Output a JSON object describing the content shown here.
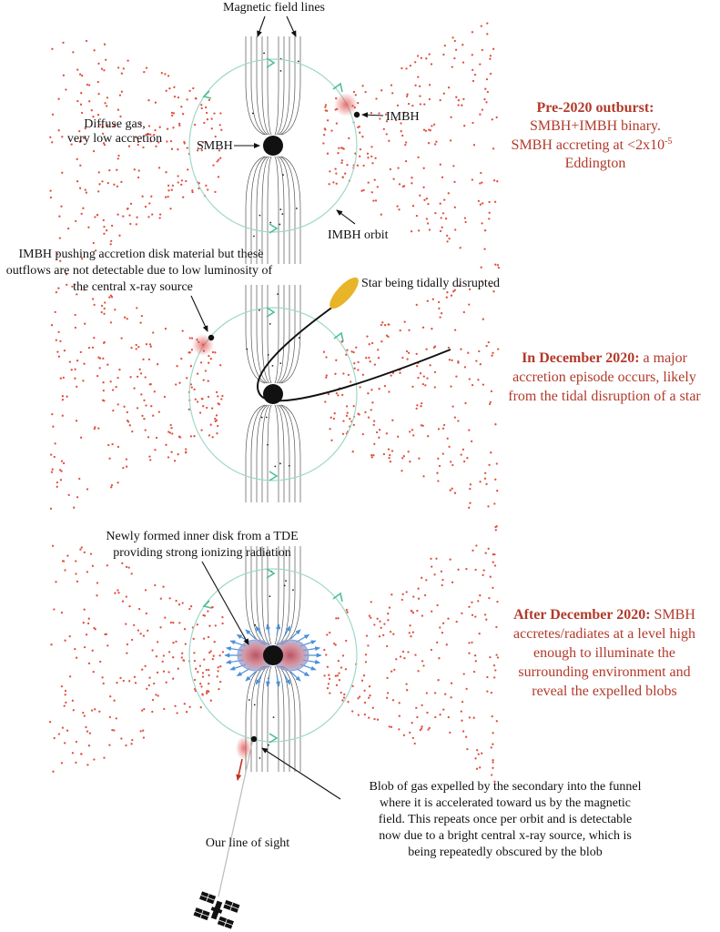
{
  "colors": {
    "gas_dots": "#e05040",
    "field_lines": "#555555",
    "orbit": "#9fd8c8",
    "orbit_arrows": "#4cbf95",
    "caption_text": "#b23a2a",
    "star": "#e8b428",
    "ionizing_arrows": "#4a8fd8",
    "inner_disk": "#c06878",
    "blob": "#e06060",
    "sightline_arrow": "#c03020"
  },
  "panel1": {
    "label_field_lines": "Magnetic field lines",
    "label_diffuse_gas_1": "Diffuse gas,",
    "label_diffuse_gas_2": "very low accretion",
    "label_smbh": "SMBH",
    "label_imbh": "IMBH",
    "label_imbh_orbit": "IMBH orbit",
    "caption_title": "Pre-2020 outburst:",
    "caption_line2": "SMBH+IMBH binary.",
    "caption_line3": "SMBH accreting at <2x10",
    "caption_exponent": "-5",
    "caption_line4": "Eddington"
  },
  "panel2": {
    "note_line1": "IMBH pushing accretion disk material but these",
    "note_line2": "outflows are not detectable due to low luminosity of",
    "note_line3": "the central x-ray source",
    "label_star": "Star being tidally disrupted",
    "caption_title": "In December 2020:",
    "caption_rest1": " a major",
    "caption_line2": "accretion episode occurs, likely",
    "caption_line3": "from the tidal disruption of a star"
  },
  "panel3": {
    "label_inner_disk_1": "Newly formed inner disk from a TDE",
    "label_inner_disk_2": "providing strong ionizing radiation",
    "caption_title": "After December 2020:",
    "caption_rest1": " SMBH",
    "caption_line2": "accretes/radiates at a level high",
    "caption_line3": "enough to illuminate the",
    "caption_line4": "surrounding environment and",
    "caption_line5": "reveal the expelled blobs",
    "label_sightline": "Our line of sight",
    "blob_line1": "Blob of gas expelled by the secondary into the funnel",
    "blob_line2": "where it is accelerated toward us by the magnetic",
    "blob_line3": "field. This repeats once per orbit and is detectable",
    "blob_line4": "now due to a bright central x-ray source, which is",
    "blob_line5": "being repeatedly obscured by the blob"
  }
}
